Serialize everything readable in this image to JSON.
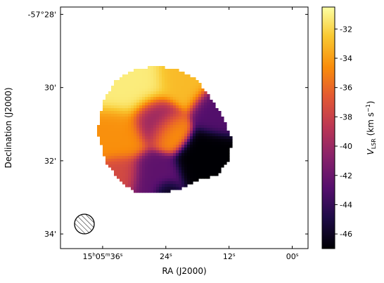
{
  "chart_data": {
    "type": "heatmap",
    "xlabel": "RA (J2000)",
    "ylabel": "Declination (J2000)",
    "colorbar": {
      "label_main": "V",
      "label_sub": "LSR",
      "label_unit": " (km s",
      "label_exp": "−1",
      "label_close": ")",
      "range": [
        -47,
        -30.5
      ],
      "ticks": [
        "-32",
        "-34",
        "-36",
        "-38",
        "-40",
        "-42",
        "-44",
        "-46"
      ],
      "tick_values": [
        -32,
        -34,
        -36,
        -38,
        -40,
        -42,
        -44,
        -46
      ],
      "colormap": "inferno"
    },
    "x_ticks": [
      {
        "h": "15",
        "hs": "h",
        "m": "05",
        "ms": "m",
        "s": "36",
        "ss": "s",
        "sec": 36
      },
      {
        "s": "24",
        "ss": "s",
        "sec": 24
      },
      {
        "s": "12",
        "ss": "s",
        "sec": 12
      },
      {
        "s": "00",
        "ss": "s",
        "sec": 0
      }
    ],
    "y_ticks": [
      {
        "label": "-57°28'",
        "arcmin": 28
      },
      {
        "label": "30'",
        "arcmin": 30
      },
      {
        "label": "32'",
        "arcmin": 32
      },
      {
        "label": "34'",
        "arcmin": 34
      }
    ],
    "x_range_sec": [
      44,
      -3
    ],
    "y_range_arcmin": [
      27.8,
      34.4
    ],
    "beam": "hatched-circle",
    "velocity_blobs": [
      {
        "ra_sec": 30.5,
        "dec_arcmin": 29.9,
        "v": -31.2,
        "sigma": 1.7
      },
      {
        "ra_sec": 20.5,
        "dec_arcmin": 29.7,
        "v": -33.0,
        "sigma": 1.4
      },
      {
        "ra_sec": 33.0,
        "dec_arcmin": 31.3,
        "v": -34.5,
        "sigma": 1.3
      },
      {
        "ra_sec": 23.5,
        "dec_arcmin": 31.2,
        "v": -34.3,
        "sigma": 0.9
      },
      {
        "ra_sec": 26.0,
        "dec_arcmin": 30.9,
        "v": -40.5,
        "sigma": 1.1
      },
      {
        "ra_sec": 14.0,
        "dec_arcmin": 30.6,
        "v": -43.0,
        "sigma": 1.1
      },
      {
        "ra_sec": 16.0,
        "dec_arcmin": 32.0,
        "v": -47.0,
        "sigma": 1.3
      },
      {
        "ra_sec": 26.5,
        "dec_arcmin": 32.5,
        "v": -42.5,
        "sigma": 1.2
      },
      {
        "ra_sec": 24.0,
        "dec_arcmin": 32.85,
        "v": -46.5,
        "sigma": 0.6
      },
      {
        "ra_sec": 32.5,
        "dec_arcmin": 32.4,
        "v": -37.5,
        "sigma": 1.0
      }
    ],
    "emission_outline": [
      [
        30.0,
        29.5
      ],
      [
        27.5,
        29.45
      ],
      [
        24.5,
        29.45
      ],
      [
        21.0,
        29.55
      ],
      [
        18.0,
        29.8
      ],
      [
        15.5,
        30.3
      ],
      [
        13.5,
        30.7
      ],
      [
        11.5,
        31.4
      ],
      [
        12.0,
        32.0
      ],
      [
        14.5,
        32.4
      ],
      [
        18.5,
        32.55
      ],
      [
        22.0,
        32.8
      ],
      [
        26.0,
        32.9
      ],
      [
        30.0,
        32.85
      ],
      [
        33.0,
        32.5
      ],
      [
        35.5,
        32.0
      ],
      [
        37.0,
        31.2
      ],
      [
        36.0,
        30.4
      ],
      [
        33.5,
        29.8
      ]
    ]
  }
}
